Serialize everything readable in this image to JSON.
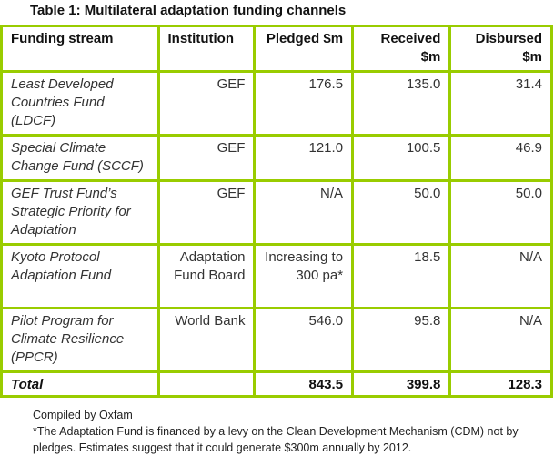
{
  "title": "Table 1: Multilateral adaptation funding channels",
  "headers": [
    "Funding stream",
    "Institution",
    "Pledged $m",
    "Received $m",
    "Disbursed $m"
  ],
  "rows": [
    {
      "stream": "Least Developed Countries Fund (LDCF)",
      "institution": "GEF",
      "pledged": "176.5",
      "received": "135.0",
      "disbursed": "31.4"
    },
    {
      "stream": "Special Climate Change Fund (SCCF)",
      "institution": "GEF",
      "pledged": "121.0",
      "received": "100.5",
      "disbursed": "46.9"
    },
    {
      "stream": "GEF Trust Fund’s Strategic Priority for Adaptation",
      "institution": "GEF",
      "pledged": "N/A",
      "received": "50.0",
      "disbursed": "50.0"
    },
    {
      "stream": "Kyoto Protocol Adaptation Fund",
      "institution": "Adaptation Fund Board",
      "pledged": "Increasing to 300 pa*",
      "received": "18.5",
      "disbursed": "N/A"
    },
    {
      "stream": "Pilot Program for Climate Resilience (PPCR)",
      "institution": "World Bank",
      "pledged": "546.0",
      "received": "95.8",
      "disbursed": "N/A"
    }
  ],
  "total": {
    "label": "Total",
    "institution": "",
    "pledged": "843.5",
    "received": "399.8",
    "disbursed": "128.3"
  },
  "footer": {
    "source": "Compiled by Oxfam",
    "note": "*The Adaptation Fund is financed by a levy on the Clean Development Mechanism (CDM) not by pledges. Estimates suggest that it could generate $300m annually by 2012."
  }
}
